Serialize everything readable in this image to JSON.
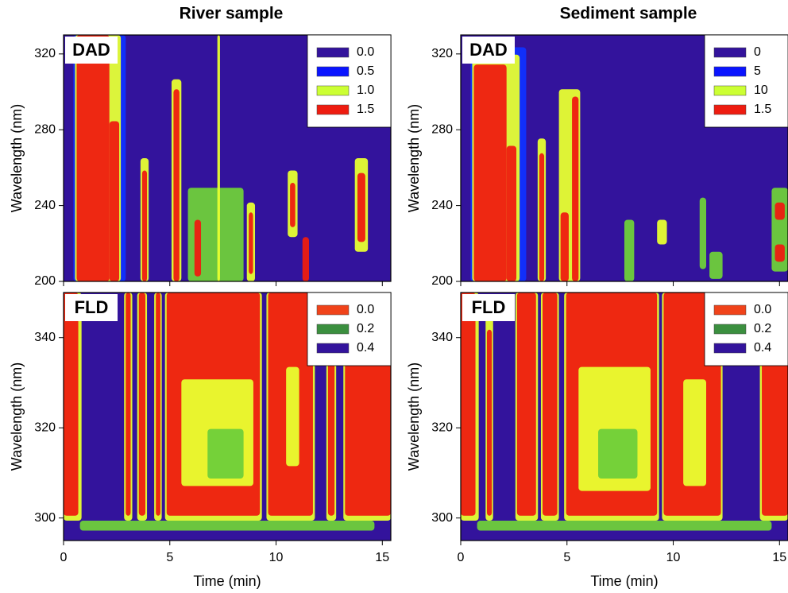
{
  "chart_data": [
    {
      "type": "contour",
      "title": "River sample",
      "label": "DAD",
      "ylabel": "Wavelength (nm)",
      "xlim": [
        0,
        15.4
      ],
      "xticks": [
        0,
        5,
        10,
        15
      ],
      "ylim": [
        200,
        330
      ],
      "yticks": [
        200,
        240,
        280,
        320
      ],
      "legend": [
        {
          "label": "0.0",
          "color": "#33139c"
        },
        {
          "label": "0.5",
          "color": "#0a14ff"
        },
        {
          "label": "1.0",
          "color": "#ccff33"
        },
        {
          "label": "1.5",
          "color": "#ee1c10"
        }
      ]
    },
    {
      "type": "contour",
      "title": "Sediment sample",
      "label": "DAD",
      "ylabel": "Wavelength (nm)",
      "xlim": [
        0,
        15.4
      ],
      "xticks": [
        0,
        5,
        10,
        15
      ],
      "ylim": [
        200,
        330
      ],
      "yticks": [
        200,
        240,
        280,
        320
      ],
      "legend": [
        {
          "label": "0",
          "color": "#33139c"
        },
        {
          "label": "5",
          "color": "#0a14ff"
        },
        {
          "label": "10",
          "color": "#ccff33"
        },
        {
          "label": "1.5",
          "color": "#ee1c10"
        }
      ]
    },
    {
      "type": "contour",
      "label": "FLD",
      "ylabel": "Wavelength (nm)",
      "xlabel": "Time (min)",
      "xlim": [
        0,
        15.4
      ],
      "xticks": [
        0,
        5,
        10,
        15
      ],
      "ylim": [
        295,
        350
      ],
      "yticks": [
        300,
        320,
        340
      ],
      "legend": [
        {
          "label": "0.0",
          "color": "#f0431a"
        },
        {
          "label": "0.2",
          "color": "#3b8f3f"
        },
        {
          "label": "0.4",
          "color": "#33139c"
        }
      ]
    },
    {
      "type": "contour",
      "label": "FLD",
      "ylabel": "Wavelength (nm)",
      "xlabel": "Time (min)",
      "xlim": [
        0,
        15.4
      ],
      "xticks": [
        0,
        5,
        10,
        15
      ],
      "ylim": [
        295,
        350
      ],
      "yticks": [
        300,
        320,
        340
      ],
      "legend": [
        {
          "label": "0.0",
          "color": "#f0431a"
        },
        {
          "label": "0.2",
          "color": "#3b8f3f"
        },
        {
          "label": "0.4",
          "color": "#33139c"
        }
      ]
    }
  ]
}
